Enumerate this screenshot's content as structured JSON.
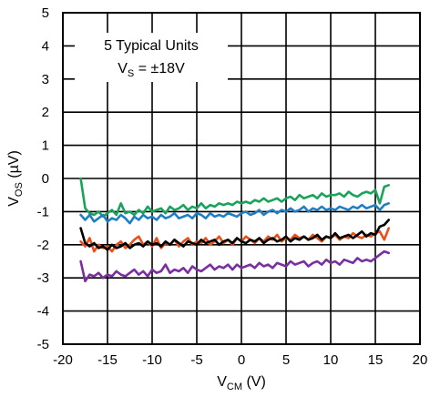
{
  "chart_data": {
    "type": "line",
    "xlabel": {
      "main": "V",
      "sub": "CM",
      "unit": " (V)"
    },
    "ylabel": {
      "main": "V",
      "sub": "OS",
      "unit": " (µV)"
    },
    "xlim": [
      -20,
      20
    ],
    "ylim": [
      -5,
      5
    ],
    "xticks": [
      -20,
      -15,
      -10,
      -5,
      0,
      5,
      10,
      15,
      20
    ],
    "yticks": [
      5,
      4,
      3,
      2,
      1,
      0,
      -1,
      -2,
      -3,
      -4,
      -5
    ],
    "grid": true,
    "annotation": {
      "line1": "5 Typical Units",
      "line2_main": "V",
      "line2_sub": "S",
      "line2_rest": " = ±18V",
      "placement": "top-left"
    },
    "series": [
      {
        "color": "#1aa35a",
        "x": [
          -18,
          -17.5,
          -17,
          -16.5,
          -16,
          -15.5,
          -15,
          -14.5,
          -14,
          -13.5,
          -13,
          -12.5,
          -12,
          -11.5,
          -11,
          -10.5,
          -10,
          -9.5,
          -9,
          -8.5,
          -8,
          -7.5,
          -7,
          -6.5,
          -6,
          -5.5,
          -5,
          -4.5,
          -4,
          -3.5,
          -3,
          -2.5,
          -2,
          -1.5,
          -1,
          -0.5,
          0,
          0.5,
          1,
          1.5,
          2,
          2.5,
          3,
          3.5,
          4,
          4.5,
          5,
          5.5,
          6,
          6.5,
          7,
          7.5,
          8,
          8.5,
          9,
          9.5,
          10,
          10.5,
          11,
          11.5,
          12,
          12.5,
          13,
          13.5,
          14,
          14.5,
          15,
          15.5,
          16,
          16.5
        ],
        "y": [
          0,
          -0.9,
          -1.05,
          -1.1,
          -1.0,
          -1.15,
          -1.05,
          -0.95,
          -1.1,
          -0.75,
          -1.05,
          -1.0,
          -1.1,
          -0.95,
          -1.05,
          -0.85,
          -1.0,
          -0.95,
          -0.9,
          -1.05,
          -0.85,
          -0.95,
          -0.9,
          -0.8,
          -0.95,
          -0.85,
          -0.9,
          -0.75,
          -0.9,
          -0.8,
          -0.85,
          -0.75,
          -0.8,
          -0.75,
          -0.8,
          -0.7,
          -0.75,
          -0.7,
          -0.75,
          -0.65,
          -0.7,
          -0.6,
          -0.7,
          -0.65,
          -0.6,
          -0.7,
          -0.6,
          -0.55,
          -0.65,
          -0.5,
          -0.6,
          -0.55,
          -0.5,
          -0.6,
          -0.45,
          -0.55,
          -0.5,
          -0.5,
          -0.45,
          -0.55,
          -0.4,
          -0.5,
          -0.55,
          -0.45,
          -0.4,
          -0.45,
          -0.35,
          -0.75,
          -0.25,
          -0.2
        ]
      },
      {
        "color": "#1f7fc4",
        "x": [
          -18,
          -17.5,
          -17,
          -16.5,
          -16,
          -15.5,
          -15,
          -14.5,
          -14,
          -13.5,
          -13,
          -12.5,
          -12,
          -11.5,
          -11,
          -10.5,
          -10,
          -9.5,
          -9,
          -8.5,
          -8,
          -7.5,
          -7,
          -6.5,
          -6,
          -5.5,
          -5,
          -4.5,
          -4,
          -3.5,
          -3,
          -2.5,
          -2,
          -1.5,
          -1,
          -0.5,
          0,
          0.5,
          1,
          1.5,
          2,
          2.5,
          3,
          3.5,
          4,
          4.5,
          5,
          5.5,
          6,
          6.5,
          7,
          7.5,
          8,
          8.5,
          9,
          9.5,
          10,
          10.5,
          11,
          11.5,
          12,
          12.5,
          13,
          13.5,
          14,
          14.5,
          15,
          15.5,
          16,
          16.5
        ],
        "y": [
          -1.1,
          -1.25,
          -1.1,
          -1.3,
          -1.2,
          -1.1,
          -1.3,
          -1.2,
          -1.25,
          -1.1,
          -1.2,
          -1.35,
          -1.15,
          -1.25,
          -1.1,
          -1.2,
          -1.15,
          -1.25,
          -1.1,
          -1.2,
          -1.15,
          -1.05,
          -1.2,
          -1.15,
          -1.1,
          -1.2,
          -1.05,
          -1.1,
          -1.2,
          -1.05,
          -1.15,
          -1.1,
          -1.15,
          -1.05,
          -1.1,
          -1.15,
          -1.05,
          -1.0,
          -1.1,
          -1.05,
          -0.95,
          -1.1,
          -1.0,
          -0.95,
          -1.05,
          -0.95,
          -1.0,
          -0.9,
          -1.0,
          -0.95,
          -0.85,
          -1.0,
          -0.9,
          -0.95,
          -0.85,
          -0.95,
          -0.9,
          -0.95,
          -0.85,
          -0.9,
          -0.95,
          -0.85,
          -0.9,
          -0.8,
          -0.9,
          -0.85,
          -0.8,
          -0.95,
          -0.8,
          -0.75
        ]
      },
      {
        "color": "#e8501c",
        "x": [
          -18,
          -17.5,
          -17,
          -16.5,
          -16,
          -15.5,
          -15,
          -14.5,
          -14,
          -13.5,
          -13,
          -12.5,
          -12,
          -11.5,
          -11,
          -10.5,
          -10,
          -9.5,
          -9,
          -8.5,
          -8,
          -7.5,
          -7,
          -6.5,
          -6,
          -5.5,
          -5,
          -4.5,
          -4,
          -3.5,
          -3,
          -2.5,
          -2,
          -1.5,
          -1,
          -0.5,
          0,
          0.5,
          1,
          1.5,
          2,
          2.5,
          3,
          3.5,
          4,
          4.5,
          5,
          5.5,
          6,
          6.5,
          7,
          7.5,
          8,
          8.5,
          9,
          9.5,
          10,
          10.5,
          11,
          11.5,
          12,
          12.5,
          13,
          13.5,
          14,
          14.5,
          15,
          15.5,
          16,
          16.5
        ],
        "y": [
          -1.9,
          -2.05,
          -1.8,
          -2.2,
          -2.0,
          -2.1,
          -2.05,
          -2.2,
          -2.0,
          -1.9,
          -2.1,
          -2.0,
          -1.85,
          -1.75,
          -2.0,
          -1.9,
          -2.05,
          -1.8,
          -2.1,
          -1.95,
          -2.0,
          -1.85,
          -2.05,
          -1.9,
          -1.8,
          -2.0,
          -1.9,
          -1.95,
          -1.8,
          -2.0,
          -1.9,
          -1.75,
          -1.95,
          -1.85,
          -2.0,
          -1.8,
          -1.9,
          -1.75,
          -1.85,
          -1.95,
          -1.8,
          -1.9,
          -1.75,
          -1.85,
          -1.7,
          -1.9,
          -1.8,
          -1.85,
          -1.7,
          -1.8,
          -1.75,
          -1.85,
          -1.7,
          -1.8,
          -1.9,
          -1.75,
          -1.8,
          -1.7,
          -1.85,
          -1.75,
          -1.8,
          -1.65,
          -1.75,
          -1.8,
          -1.7,
          -1.75,
          -1.65,
          -1.6,
          -1.85,
          -1.5
        ]
      },
      {
        "color": "#000000",
        "x": [
          -18,
          -17.5,
          -17,
          -16.5,
          -16,
          -15.5,
          -15,
          -14.5,
          -14,
          -13.5,
          -13,
          -12.5,
          -12,
          -11.5,
          -11,
          -10.5,
          -10,
          -9.5,
          -9,
          -8.5,
          -8,
          -7.5,
          -7,
          -6.5,
          -6,
          -5.5,
          -5,
          -4.5,
          -4,
          -3.5,
          -3,
          -2.5,
          -2,
          -1.5,
          -1,
          -0.5,
          0,
          0.5,
          1,
          1.5,
          2,
          2.5,
          3,
          3.5,
          4,
          4.5,
          5,
          5.5,
          6,
          6.5,
          7,
          7.5,
          8,
          8.5,
          9,
          9.5,
          10,
          10.5,
          11,
          11.5,
          12,
          12.5,
          13,
          13.5,
          14,
          14.5,
          15,
          15.5,
          16,
          16.5
        ],
        "y": [
          -1.5,
          -1.95,
          -2.05,
          -1.95,
          -2.1,
          -2.05,
          -2.15,
          -2.0,
          -2.1,
          -2.05,
          -1.95,
          -2.1,
          -2.0,
          -1.95,
          -2.05,
          -1.9,
          -2.0,
          -1.95,
          -2.05,
          -1.9,
          -2.0,
          -1.85,
          -1.95,
          -2.05,
          -1.9,
          -1.95,
          -2.0,
          -1.85,
          -1.95,
          -1.9,
          -1.85,
          -2.0,
          -1.9,
          -1.85,
          -1.95,
          -1.8,
          -1.9,
          -1.95,
          -1.85,
          -1.9,
          -1.8,
          -1.95,
          -1.85,
          -1.8,
          -1.9,
          -1.85,
          -1.75,
          -1.9,
          -1.8,
          -1.85,
          -1.75,
          -1.85,
          -1.8,
          -1.7,
          -1.85,
          -1.75,
          -1.8,
          -1.65,
          -1.8,
          -1.75,
          -1.7,
          -1.8,
          -1.7,
          -1.6,
          -1.75,
          -1.65,
          -1.7,
          -1.45,
          -1.4,
          -1.25
        ]
      },
      {
        "color": "#7a2fa0",
        "x": [
          -18,
          -17.5,
          -17,
          -16.5,
          -16,
          -15.5,
          -15,
          -14.5,
          -14,
          -13.5,
          -13,
          -12.5,
          -12,
          -11.5,
          -11,
          -10.5,
          -10,
          -9.5,
          -9,
          -8.5,
          -8,
          -7.5,
          -7,
          -6.5,
          -6,
          -5.5,
          -5,
          -4.5,
          -4,
          -3.5,
          -3,
          -2.5,
          -2,
          -1.5,
          -1,
          -0.5,
          0,
          0.5,
          1,
          1.5,
          2,
          2.5,
          3,
          3.5,
          4,
          4.5,
          5,
          5.5,
          6,
          6.5,
          7,
          7.5,
          8,
          8.5,
          9,
          9.5,
          10,
          10.5,
          11,
          11.5,
          12,
          12.5,
          13,
          13.5,
          14,
          14.5,
          15,
          15.5,
          16,
          16.5
        ],
        "y": [
          -2.5,
          -3.1,
          -2.9,
          -2.95,
          -2.85,
          -3.0,
          -2.9,
          -2.95,
          -2.8,
          -2.9,
          -2.95,
          -2.85,
          -2.75,
          -2.9,
          -2.8,
          -2.95,
          -2.75,
          -2.85,
          -2.8,
          -2.6,
          -2.85,
          -2.75,
          -2.8,
          -2.7,
          -2.85,
          -2.65,
          -2.75,
          -2.8,
          -2.7,
          -2.6,
          -2.75,
          -2.65,
          -2.7,
          -2.6,
          -2.75,
          -2.6,
          -2.7,
          -2.65,
          -2.6,
          -2.7,
          -2.55,
          -2.65,
          -2.6,
          -2.7,
          -2.55,
          -2.6,
          -2.65,
          -2.5,
          -2.6,
          -2.55,
          -2.5,
          -2.65,
          -2.55,
          -2.5,
          -2.6,
          -2.45,
          -2.55,
          -2.5,
          -2.6,
          -2.45,
          -2.5,
          -2.55,
          -2.4,
          -2.5,
          -2.45,
          -2.5,
          -2.4,
          -2.3,
          -2.2,
          -2.25
        ]
      }
    ]
  }
}
